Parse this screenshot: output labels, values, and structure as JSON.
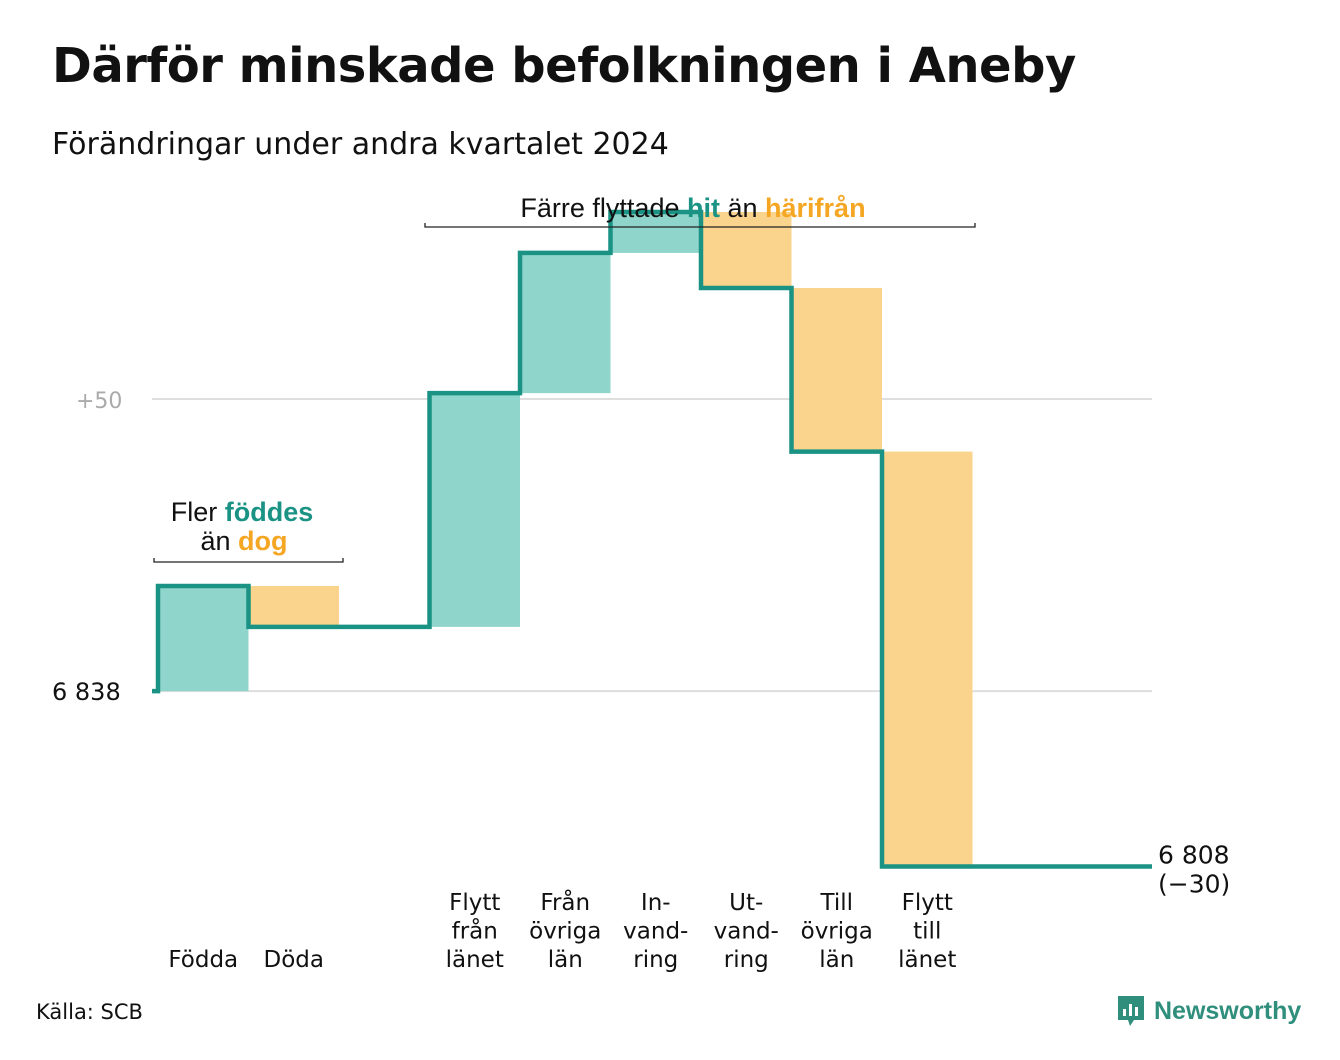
{
  "title": "Därför minskade befolkningen i Aneby",
  "subtitle": "Förändringar under andra kvartalet 2024",
  "source": "Källa: SCB",
  "brand": "Newsworthy",
  "colors": {
    "increase_fill": "#8fd5cb",
    "decrease_fill": "#fad48c",
    "step_line": "#1a9284",
    "highlight_teal": "#1a9284",
    "highlight_orange": "#f5a623",
    "gridline": "#dedede",
    "axis_label_muted": "#aaaaaa"
  },
  "chart_data": {
    "type": "waterfall",
    "start_value": 6838,
    "end_value": 6808,
    "end_label": "6 808",
    "end_change_label": "(−30)",
    "y_reference_lines": [
      {
        "value": 6838,
        "label": "6  838"
      },
      {
        "value": 6888,
        "label": "+50"
      }
    ],
    "ylim": [
      6805,
      6920
    ],
    "steps": [
      {
        "category": "Födda",
        "label_lines": [
          "Födda"
        ],
        "change": 18,
        "kind": "increase"
      },
      {
        "category": "Döda",
        "label_lines": [
          "Döda"
        ],
        "change": -7,
        "kind": "decrease"
      },
      {
        "category": "",
        "label_lines": [],
        "change": 0,
        "kind": "spacer"
      },
      {
        "category": "Flytt från länet",
        "label_lines": [
          "Flytt",
          "från",
          "länet"
        ],
        "change": 40,
        "kind": "increase"
      },
      {
        "category": "Från övriga län",
        "label_lines": [
          "Från",
          "övriga",
          "län"
        ],
        "change": 24,
        "kind": "increase"
      },
      {
        "category": "Invandring",
        "label_lines": [
          "In-",
          "vand-",
          "ring"
        ],
        "change": 7,
        "kind": "increase"
      },
      {
        "category": "Utvandring",
        "label_lines": [
          "Ut-",
          "vand-",
          "ring"
        ],
        "change": -13,
        "kind": "decrease"
      },
      {
        "category": "Till övriga län",
        "label_lines": [
          "Till",
          "övriga",
          "län"
        ],
        "change": -28,
        "kind": "decrease"
      },
      {
        "category": "Flytt till länet",
        "label_lines": [
          "Flytt",
          "till",
          "länet"
        ],
        "change": -71,
        "kind": "decrease"
      },
      {
        "category": "",
        "label_lines": [],
        "change": 0,
        "kind": "spacer"
      }
    ],
    "annotations": [
      {
        "id": "births",
        "line1": [
          {
            "text": "Fler ",
            "style": "plain"
          },
          {
            "text": "föddes",
            "style": "teal"
          }
        ],
        "line2": [
          {
            "text": "än ",
            "style": "plain"
          },
          {
            "text": "dog",
            "style": "orange"
          }
        ]
      },
      {
        "id": "migration",
        "line1": [
          {
            "text": "Färre flyttade ",
            "style": "plain"
          },
          {
            "text": "hit",
            "style": "teal"
          },
          {
            "text": "  än ",
            "style": "plain"
          },
          {
            "text": "härifrån",
            "style": "orange"
          }
        ]
      }
    ]
  }
}
